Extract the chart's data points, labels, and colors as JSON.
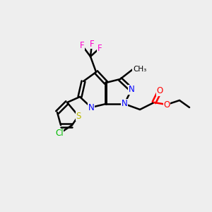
{
  "bg_color": "#eeeeee",
  "bond_color": "#000000",
  "bond_lw": 1.8,
  "atom_colors": {
    "N": "#0000ff",
    "O": "#ff0000",
    "F": "#ff00cc",
    "Cl": "#00bb00",
    "S": "#bbbb00",
    "C": "#000000"
  },
  "font_size": 8.5,
  "font_size_small": 7.5
}
